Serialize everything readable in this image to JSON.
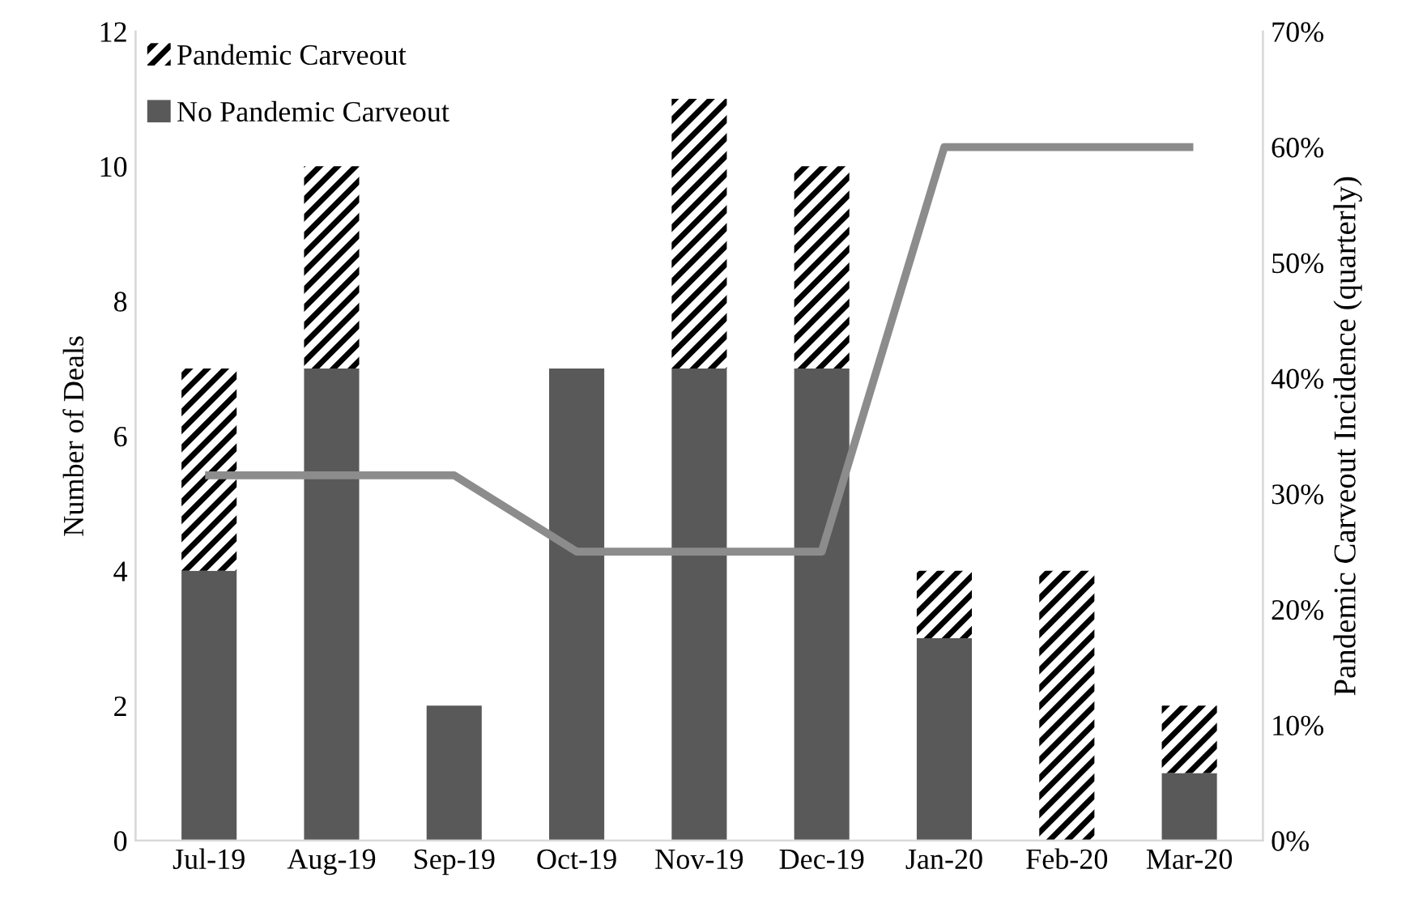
{
  "chart_data": {
    "type": "bar",
    "stacked": true,
    "ylabel": "Number of Deals",
    "y2label": "Pandemic Carveout Incidence (quarterly)",
    "categories": [
      "Jul-19",
      "Aug-19",
      "Sep-19",
      "Oct-19",
      "Nov-19",
      "Dec-19",
      "Jan-20",
      "Feb-20",
      "Mar-20"
    ],
    "series": [
      {
        "name": "No Pandemic Carveout",
        "color": "#595959",
        "values": [
          4,
          7,
          2,
          7,
          7,
          7,
          3,
          0,
          1
        ]
      },
      {
        "name": "Pandemic Carveout",
        "color": "#000000",
        "values": [
          3,
          3,
          0,
          0,
          4,
          3,
          1,
          4,
          1
        ]
      },
      {
        "type": "line",
        "axis": "y2",
        "color": "#8c8c8c",
        "values": [
          31.6,
          31.6,
          31.6,
          25,
          25,
          25,
          60,
          60,
          60
        ]
      }
    ],
    "ylim": [
      0,
      12
    ],
    "yticks": [
      0,
      2,
      4,
      6,
      8,
      10,
      12
    ],
    "y2lim": [
      0,
      70
    ],
    "y2ticks": [
      {
        "value": 0,
        "label": "0%"
      },
      {
        "value": 10,
        "label": "10%"
      },
      {
        "value": 20,
        "label": "20%"
      },
      {
        "value": 30,
        "label": "30%"
      },
      {
        "value": 40,
        "label": "40%"
      },
      {
        "value": 50,
        "label": "50%"
      },
      {
        "value": 60,
        "label": "60%"
      },
      {
        "value": 70,
        "label": "70%"
      }
    ],
    "legend": "top left",
    "grid": false
  }
}
